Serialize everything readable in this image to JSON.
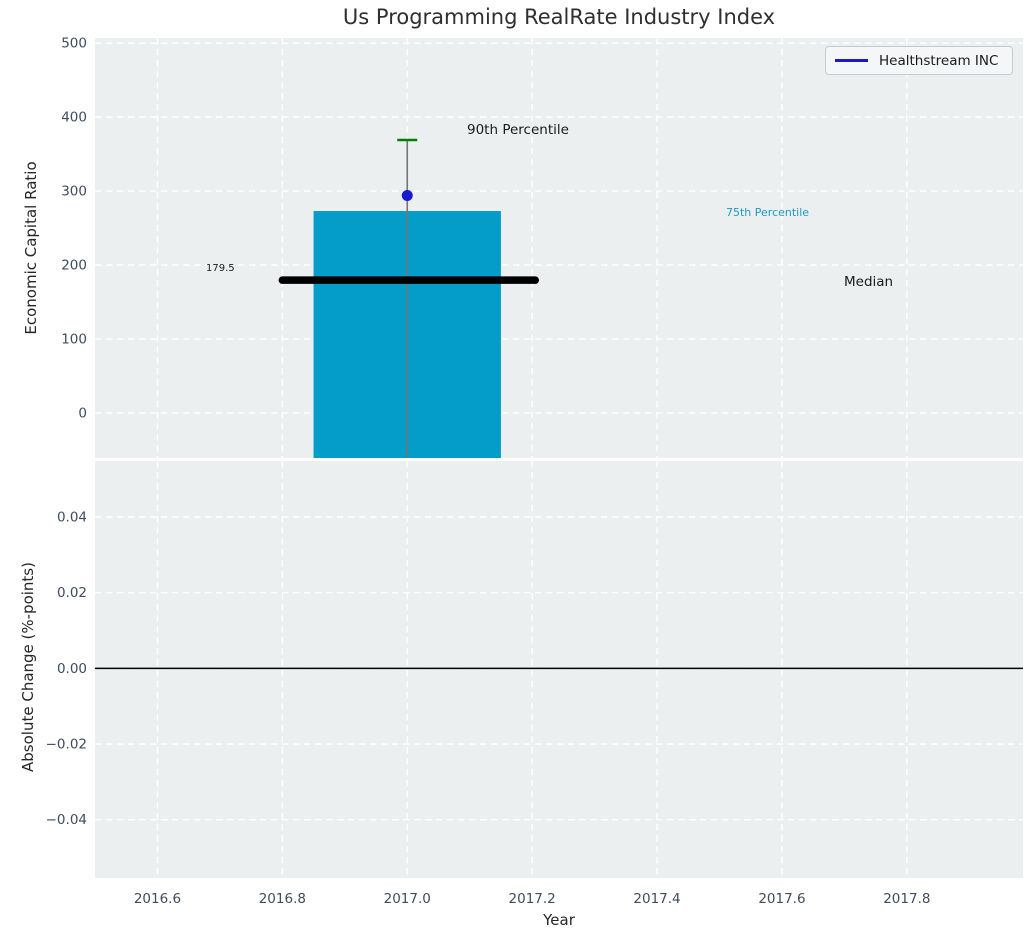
{
  "colors": {
    "figure_bg": "#ffffff",
    "plot_bg": "#ebeff0",
    "grid": "#ffffff",
    "tick_label": "#3e4c5e",
    "text": "#262626"
  },
  "chart_data": [
    {
      "type": "bar",
      "title": "Us Programming RealRate Industry Index",
      "ylabel": "Economic Capital Ratio",
      "ylim": [
        -61,
        507
      ],
      "yticks": [
        0,
        100,
        200,
        300,
        400,
        500
      ],
      "xlim": [
        2016.5,
        2017.986
      ],
      "grid": true,
      "bar": {
        "x": 2017.0,
        "width": 0.3,
        "top_value": 273,
        "extends_to_axis_bottom": true,
        "color": "#049dca"
      },
      "percentile_90": {
        "value": 369,
        "label": "90th Percentile",
        "marker_color": "#008000",
        "marker_halfwidth_px": 10
      },
      "percentile_75": {
        "value": 273,
        "label": "75th Percentile",
        "label_color": "#1f9ac0"
      },
      "median": {
        "value": 179.5,
        "value_label": "179.5",
        "label": "Median",
        "x_start": 2016.8,
        "x_end": 2017.205,
        "color": "#000000",
        "linewidth": 7.5
      },
      "whisker_line": {
        "x": 2017.0,
        "from_value": 369,
        "to_axis_bottom": true,
        "color": "#757575",
        "linewidth": 1.6
      },
      "series": [
        {
          "name": "Healthstream INC",
          "type": "scatter",
          "x": [
            2017.0
          ],
          "values": [
            294
          ],
          "color": "#1a1acd",
          "marker_radius_px": 5.5
        }
      ],
      "legend": {
        "label": "Healthstream INC",
        "position": "upper right",
        "line_color": "#1a1acd"
      }
    },
    {
      "type": "line",
      "ylabel": "Absolute Change (%-points)",
      "xlabel": "Year",
      "ylim": [
        -0.0554,
        0.0548
      ],
      "yticks": [
        0.04,
        0.02,
        0.0,
        -0.02,
        -0.04
      ],
      "xlim": [
        2016.5,
        2017.986
      ],
      "xticks": [
        2016.6,
        2016.8,
        2017.0,
        2017.2,
        2017.4,
        2017.6,
        2017.8
      ],
      "zero_line": 0.0,
      "grid": true
    }
  ]
}
